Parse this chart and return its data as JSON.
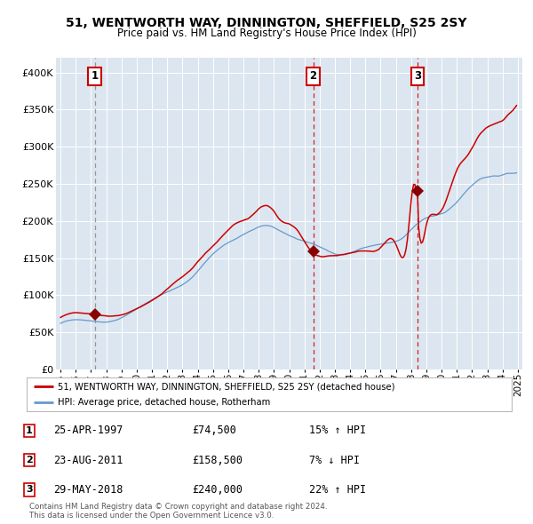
{
  "title": "51, WENTWORTH WAY, DINNINGTON, SHEFFIELD, S25 2SY",
  "subtitle": "Price paid vs. HM Land Registry's House Price Index (HPI)",
  "legend_label_red": "51, WENTWORTH WAY, DINNINGTON, SHEFFIELD, S25 2SY (detached house)",
  "legend_label_blue": "HPI: Average price, detached house, Rotherham",
  "sale_prices": [
    74500,
    158500,
    240000
  ],
  "sale_labels": [
    "1",
    "2",
    "3"
  ],
  "sale_year_floats": [
    1997.25,
    2011.583,
    2018.417
  ],
  "sale_info": [
    {
      "label": "1",
      "date": "25-APR-1997",
      "price": "£74,500",
      "hpi_rel": "15% ↑ HPI"
    },
    {
      "label": "2",
      "date": "23-AUG-2011",
      "price": "£158,500",
      "hpi_rel": "7% ↓ HPI"
    },
    {
      "label": "3",
      "date": "29-MAY-2018",
      "price": "£240,000",
      "hpi_rel": "22% ↑ HPI"
    }
  ],
  "copyright_text": "Contains HM Land Registry data © Crown copyright and database right 2024.\nThis data is licensed under the Open Government Licence v3.0.",
  "ylim": [
    0,
    420000
  ],
  "yticks": [
    0,
    50000,
    100000,
    150000,
    200000,
    250000,
    300000,
    350000,
    400000
  ],
  "ytick_labels": [
    "£0",
    "£50K",
    "£100K",
    "£150K",
    "£200K",
    "£250K",
    "£300K",
    "£350K",
    "£400K"
  ],
  "bg_color": "#dce6f0",
  "red_color": "#cc0000",
  "blue_color": "#6699cc",
  "marker_color": "#880000",
  "grid_color": "#ffffff",
  "box_color": "#cc0000",
  "xstart": 1995,
  "xend": 2025,
  "xlim_left": 1994.7,
  "xlim_right": 2025.3
}
